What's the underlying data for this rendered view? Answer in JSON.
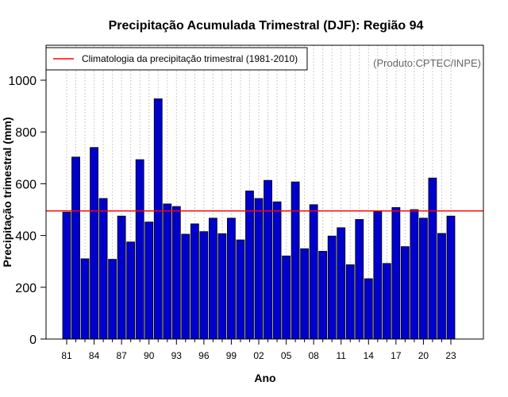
{
  "chart_data": {
    "type": "bar",
    "title": "Precipitação Acumulada Trimestral (DJF): Região 94",
    "xlabel": "Ano",
    "ylabel": "Precipitação trimestral (mm)",
    "credit": "(Produto:CPTEC/INPE)",
    "ylim": [
      0,
      1100
    ],
    "yticks": [
      0,
      200,
      400,
      600,
      800,
      1000
    ],
    "categories": [
      "81",
      "82",
      "83",
      "84",
      "85",
      "86",
      "87",
      "88",
      "89",
      "90",
      "91",
      "92",
      "93",
      "94",
      "95",
      "96",
      "97",
      "98",
      "99",
      "00",
      "01",
      "02",
      "03",
      "04",
      "05",
      "06",
      "07",
      "08",
      "09",
      "10",
      "11",
      "12",
      "13",
      "14",
      "15",
      "16",
      "17",
      "18",
      "19",
      "20",
      "21",
      "22",
      "23"
    ],
    "xtick_labels": [
      "81",
      "84",
      "87",
      "90",
      "93",
      "96",
      "99",
      "02",
      "05",
      "08",
      "11",
      "14",
      "17",
      "20",
      "23"
    ],
    "series": [
      {
        "name": "Precipitação trimestral",
        "values": [
          490,
          703,
          310,
          740,
          543,
          308,
          475,
          375,
          693,
          452,
          928,
          522,
          512,
          405,
          445,
          415,
          467,
          407,
          467,
          383,
          572,
          543,
          613,
          530,
          321,
          607,
          349,
          519,
          339,
          398,
          430,
          287,
          462,
          233,
          492,
          292,
          508,
          357,
          500,
          467,
          622,
          408,
          475
        ]
      }
    ],
    "reference_line": {
      "label": "Climatologia da precipitação trimestral (1981-2010)",
      "value": 495
    },
    "legend_position": "top-left",
    "grid": "vertical-dotted"
  },
  "colors": {
    "bar_fill": "#0000cc",
    "bar_stroke": "#000000",
    "reference_line": "#ff0000",
    "grid": "#cccccc",
    "credit": "#666666"
  }
}
